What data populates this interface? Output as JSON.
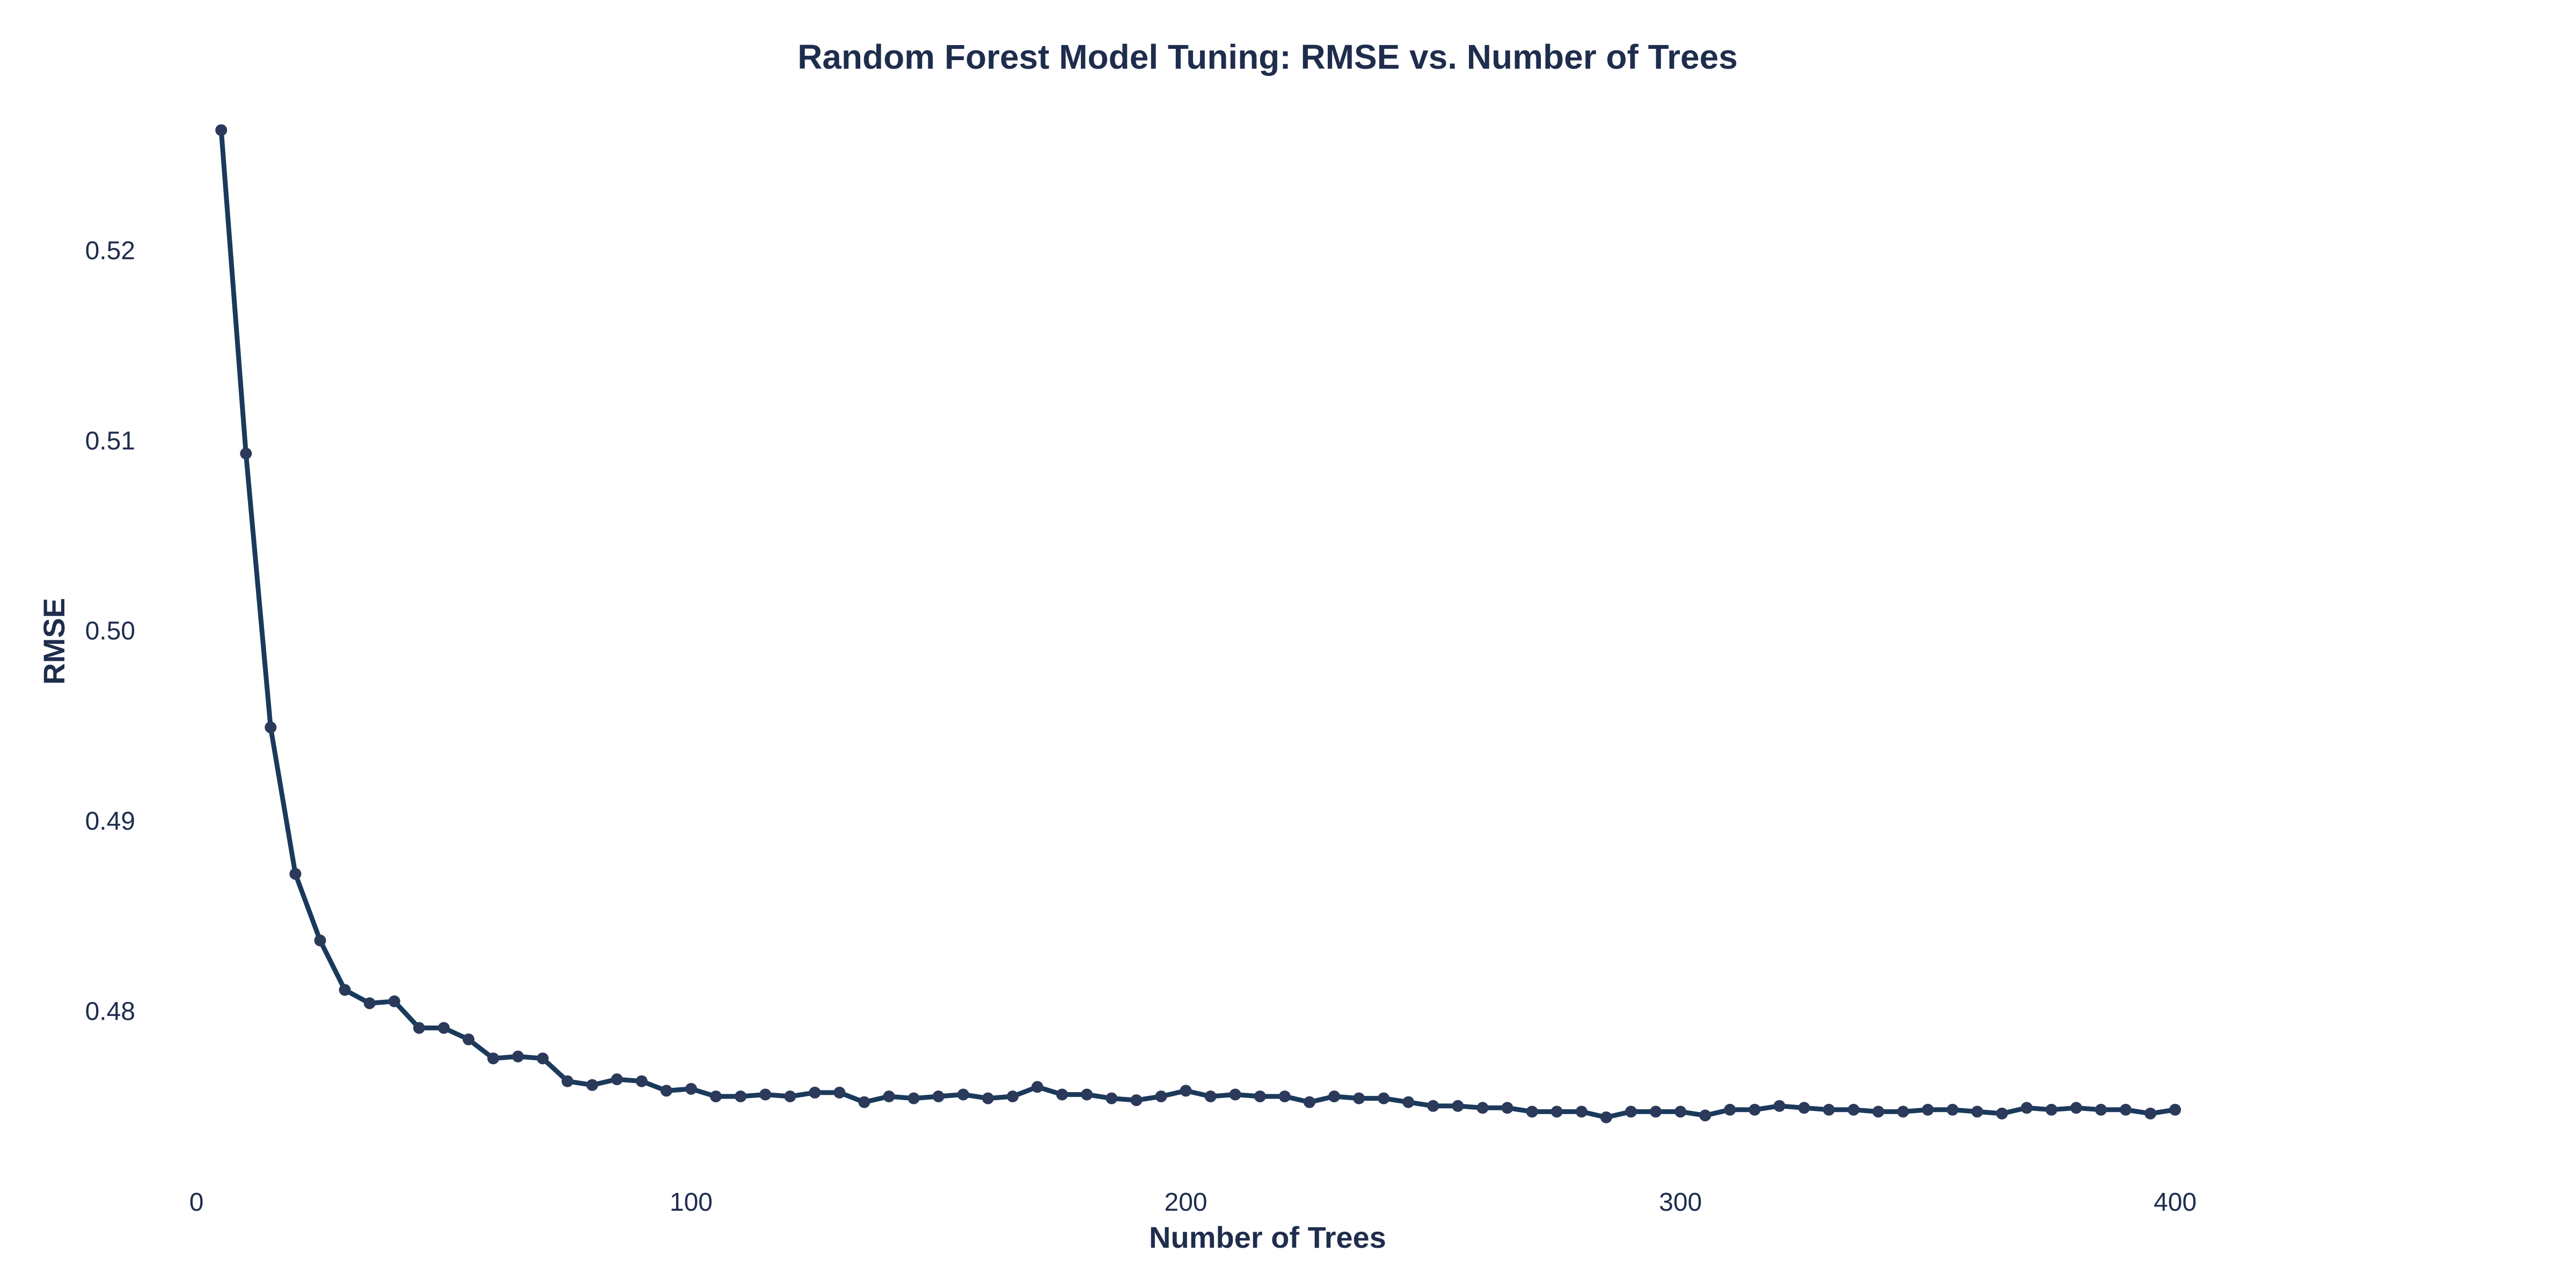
{
  "chart_data": {
    "type": "line",
    "title": "Random Forest Model Tuning: RMSE vs. Number of Trees",
    "xlabel": "Number of Trees",
    "ylabel": "RMSE",
    "xlim": [
      -5,
      455
    ],
    "ylim": [
      0.4722,
      0.5275
    ],
    "x_ticks": [
      0,
      100,
      200,
      300,
      400
    ],
    "x_tick_labels": [
      "0",
      "100",
      "200",
      "300",
      "400"
    ],
    "y_ticks": [
      0.48,
      0.49,
      0.5,
      0.51,
      0.52
    ],
    "y_tick_labels": [
      "0.48",
      "0.49",
      "0.50",
      "0.51",
      "0.52"
    ],
    "grid": false,
    "legend": "none",
    "colors": {
      "line": "#1a3a5c",
      "marker": "#2b3a5a",
      "text": "#1f2d4d"
    },
    "series": [
      {
        "x": [
          5,
          10,
          15,
          20,
          25,
          30,
          35,
          40,
          45,
          50,
          55,
          60,
          65,
          70,
          75,
          80,
          85,
          90,
          95,
          100,
          105,
          110,
          115,
          120,
          125,
          130,
          135,
          140,
          145,
          150,
          155,
          160,
          165,
          170,
          175,
          180,
          185,
          190,
          195,
          200,
          205,
          210,
          215,
          220,
          225,
          230,
          235,
          240,
          245,
          250,
          255,
          260,
          265,
          270,
          275,
          280,
          285,
          290,
          295,
          300,
          305,
          310,
          315,
          320,
          325,
          330,
          335,
          340,
          345,
          350,
          355,
          360,
          365,
          370,
          375,
          380,
          385,
          390,
          395,
          400
        ],
        "y": [
          0.5263,
          0.5093,
          0.4949,
          0.4872,
          0.4837,
          0.4811,
          0.4804,
          0.4805,
          0.4791,
          0.4791,
          0.4785,
          0.4775,
          0.4776,
          0.4775,
          0.4763,
          0.4761,
          0.4764,
          0.4763,
          0.4758,
          0.4759,
          0.4755,
          0.4755,
          0.4756,
          0.4755,
          0.4757,
          0.4757,
          0.4752,
          0.4755,
          0.4754,
          0.4755,
          0.4756,
          0.4754,
          0.4755,
          0.476,
          0.4756,
          0.4756,
          0.4754,
          0.4753,
          0.4755,
          0.4758,
          0.4755,
          0.4756,
          0.4755,
          0.4755,
          0.4752,
          0.4755,
          0.4754,
          0.4754,
          0.4752,
          0.475,
          0.475,
          0.4749,
          0.4749,
          0.4747,
          0.4747,
          0.4747,
          0.4744,
          0.4747,
          0.4747,
          0.4747,
          0.4745,
          0.4748,
          0.4748,
          0.475,
          0.4749,
          0.4748,
          0.4748,
          0.4747,
          0.4747,
          0.4748,
          0.4748,
          0.4747,
          0.4746,
          0.4749,
          0.4748,
          0.4749,
          0.4748,
          0.4748,
          0.4746,
          0.4748
        ]
      }
    ]
  }
}
